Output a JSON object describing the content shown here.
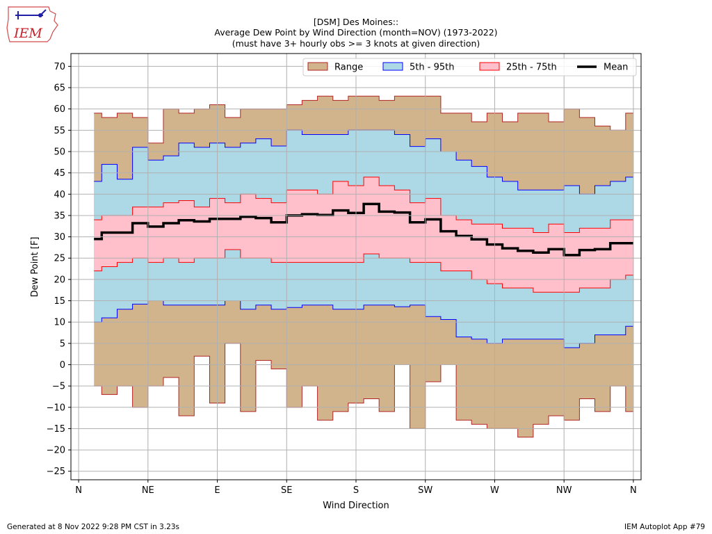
{
  "header": {
    "logo_text": "IEM",
    "title_lines": [
      "[DSM] Des Moines::",
      "Average Dew Point by Wind Direction (month=NOV) (1973-2022)",
      "(must have 3+ hourly obs >= 3 knots at given direction)"
    ]
  },
  "footer": {
    "left": "Generated at 8 Nov 2022 9:28 PM CST in 3.23s",
    "right": "IEM Autoplot App #79"
  },
  "chart_data": {
    "type": "area",
    "xlabel": "Wind Direction",
    "ylabel": "Dew Point [F]",
    "xlim": [
      -5,
      365
    ],
    "ylim": [
      -27,
      73
    ],
    "xtick_values": [
      0,
      45,
      90,
      135,
      180,
      225,
      270,
      315,
      360
    ],
    "xtick_labels": [
      "N",
      "NE",
      "E",
      "SE",
      "S",
      "SW",
      "W",
      "NW",
      "N"
    ],
    "yticks": [
      -25,
      -20,
      -15,
      -10,
      -5,
      0,
      5,
      10,
      15,
      20,
      25,
      30,
      35,
      40,
      45,
      50,
      55,
      60,
      65,
      70
    ],
    "grid": true,
    "legend_position": "top-right",
    "x": [
      10,
      20,
      30,
      40,
      50,
      60,
      70,
      80,
      90,
      100,
      110,
      120,
      130,
      140,
      150,
      160,
      170,
      180,
      190,
      200,
      210,
      220,
      230,
      240,
      250,
      260,
      270,
      280,
      290,
      300,
      310,
      320,
      330,
      340,
      350,
      360
    ],
    "step_edges": [
      10,
      15,
      25,
      35,
      45,
      55,
      65,
      75,
      85,
      95,
      105,
      115,
      125,
      135,
      145,
      155,
      165,
      175,
      185,
      195,
      205,
      215,
      225,
      235,
      245,
      255,
      265,
      275,
      285,
      295,
      305,
      315,
      325,
      335,
      345,
      355,
      360
    ],
    "series": [
      {
        "name": "Range",
        "color": "#d2b48c",
        "edge": "#b22222",
        "low": [
          -5,
          -7,
          -5,
          -10,
          -5,
          -3,
          -12,
          2,
          -9,
          5,
          -11,
          1,
          -1,
          -10,
          -5,
          -13,
          -11,
          -9,
          -8,
          -11,
          0,
          -15,
          -4,
          0,
          -13,
          -14,
          -15,
          -15,
          -17,
          -14,
          -12,
          -13,
          -8,
          -11,
          -5,
          -11
        ],
        "high": [
          59,
          58,
          59,
          58,
          52,
          60,
          59,
          60,
          61,
          58,
          60,
          60,
          60,
          61,
          62,
          63,
          62,
          63,
          63,
          62,
          63,
          63,
          63,
          59,
          59,
          57,
          59,
          57,
          59,
          59,
          57,
          60,
          58,
          56,
          55,
          59
        ]
      },
      {
        "name": "5th - 95th",
        "color": "#add8e6",
        "edge": "#0000ff",
        "low": [
          10,
          11,
          13,
          14.2,
          15,
          14,
          14,
          14,
          14,
          15,
          13,
          14,
          13,
          13.4,
          14,
          14,
          13,
          13,
          14,
          14,
          13.6,
          14,
          11.3,
          10.6,
          6.5,
          6,
          5,
          6,
          6,
          6,
          6,
          4,
          5,
          7,
          7,
          9
        ],
        "high": [
          43,
          47,
          43.5,
          51,
          48,
          49,
          52,
          51,
          52,
          51,
          52,
          53,
          51.3,
          55,
          54,
          54,
          54,
          55,
          55,
          55,
          54,
          51.2,
          53,
          50,
          48,
          46.5,
          44,
          43,
          41,
          41,
          41,
          42,
          40,
          42,
          43,
          44
        ]
      },
      {
        "name": "25th - 75th",
        "color": "#ffc0cb",
        "edge": "#ff0000",
        "low": [
          22,
          23,
          24,
          25,
          24,
          25,
          24,
          25,
          25,
          27,
          25,
          25,
          24,
          24,
          24,
          24,
          24,
          24,
          26,
          25,
          25,
          24,
          24,
          22,
          22,
          20,
          19,
          18,
          18,
          17,
          17,
          17,
          18,
          18,
          20,
          21
        ],
        "high": [
          34,
          35,
          35,
          37,
          37,
          38,
          38.5,
          37,
          39,
          38,
          40,
          39,
          38,
          41,
          41,
          40,
          43,
          42,
          44,
          42,
          41,
          38,
          39,
          35,
          34,
          33,
          33,
          32,
          32,
          31,
          33,
          31,
          32,
          32,
          34,
          34
        ]
      },
      {
        "name": "Mean",
        "color": "#000000",
        "values": [
          29.5,
          31,
          31,
          33.2,
          32.4,
          33.2,
          33.9,
          33.6,
          34.2,
          34.2,
          34.7,
          34.4,
          33.4,
          35,
          35.3,
          35.1,
          36.2,
          35.6,
          37.7,
          35.9,
          35.7,
          33.4,
          34.1,
          31.3,
          30.2,
          29.4,
          28.2,
          27.3,
          26.7,
          26.3,
          27.1,
          25.7,
          26.9,
          27.1,
          28.5,
          28.5
        ]
      }
    ]
  }
}
